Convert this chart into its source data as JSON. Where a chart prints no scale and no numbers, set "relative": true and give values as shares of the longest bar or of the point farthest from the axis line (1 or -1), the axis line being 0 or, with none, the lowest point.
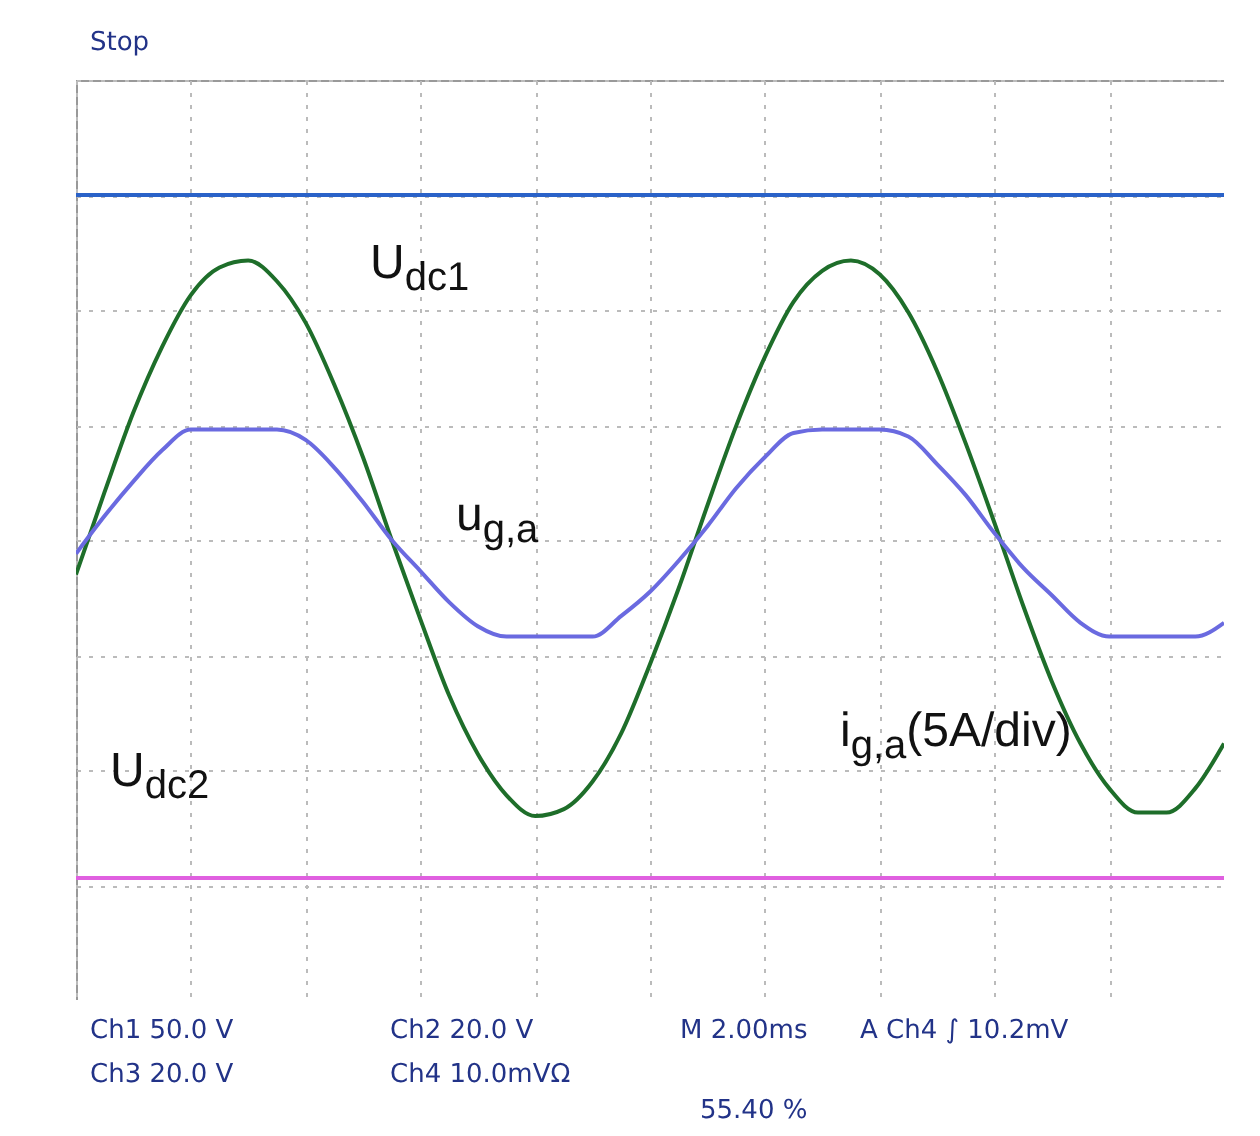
{
  "chart_data": {
    "type": "line",
    "relative": true,
    "grid": true,
    "categories": [
      null,
      null,
      null,
      null,
      null,
      null,
      null,
      null,
      null,
      null,
      null,
      null,
      null,
      null,
      null,
      null,
      null,
      null,
      null,
      null,
      null,
      null,
      null,
      null,
      null,
      null,
      null,
      null,
      null,
      null,
      null,
      null,
      null,
      null,
      null,
      null,
      null,
      null,
      null,
      null,
      null
    ],
    "series": [
      {
        "name": "U$_{dc1}$",
        "color": "#2a62c8",
        "values": [
          1,
          1,
          1,
          1,
          1,
          1,
          1,
          1,
          1,
          1,
          1,
          1,
          1,
          1,
          1,
          1,
          1,
          1,
          1,
          1,
          1,
          1,
          1,
          1,
          1,
          1,
          1,
          1,
          1,
          1,
          1,
          1,
          1,
          1,
          1,
          1,
          1,
          1,
          1,
          1,
          1
        ]
      },
      {
        "name": "i$_{g,a}$(5A/div)",
        "color": "#1e6e2a",
        "values": [
          -0.1,
          0.14,
          0.37,
          0.56,
          0.71,
          0.79,
          0.81,
          0.75,
          0.63,
          0.45,
          0.24,
          0.0,
          -0.23,
          -0.45,
          -0.62,
          -0.74,
          -0.8,
          -0.78,
          -0.7,
          -0.56,
          -0.36,
          -0.14,
          0.1,
          0.33,
          0.53,
          0.69,
          0.78,
          0.81,
          0.77,
          0.66,
          0.49,
          0.28,
          0.05,
          -0.19,
          -0.41,
          -0.59,
          -0.72,
          -0.79,
          -0.79,
          -0.72,
          -0.59
        ]
      },
      {
        "name": "u$_{g,a}$",
        "color": "#6a6ae0",
        "values": [
          -0.04,
          0.07,
          0.17,
          0.26,
          0.32,
          0.32,
          0.32,
          0.32,
          0.29,
          0.21,
          0.11,
          0.0,
          -0.09,
          -0.18,
          -0.25,
          -0.28,
          -0.28,
          -0.28,
          -0.28,
          -0.22,
          -0.15,
          -0.06,
          0.04,
          0.15,
          0.24,
          0.31,
          0.32,
          0.32,
          0.32,
          0.3,
          0.22,
          0.13,
          0.02,
          -0.08,
          -0.16,
          -0.24,
          -0.28,
          -0.28,
          -0.28,
          -0.28,
          -0.24
        ]
      },
      {
        "name": "U$_{dc2}$",
        "color": "#e060e0",
        "values": [
          -0.98,
          -0.98,
          -0.98,
          -0.98,
          -0.98,
          -0.98,
          -0.98,
          -0.98,
          -0.98,
          -0.98,
          -0.98,
          -0.98,
          -0.98,
          -0.98,
          -0.98,
          -0.98,
          -0.98,
          -0.98,
          -0.98,
          -0.98,
          -0.98,
          -0.98,
          -0.98,
          -0.98,
          -0.98,
          -0.98,
          -0.98,
          -0.98,
          -0.98,
          -0.98,
          -0.98,
          -0.98,
          -0.98,
          -0.98,
          -0.98,
          -0.98,
          -0.98,
          -0.98,
          -0.98,
          -0.98,
          -0.98
        ]
      }
    ],
    "annotations": [
      "Stop",
      "Ch1  50.0 V",
      "Ch2  20.0 V",
      "M 2.00ms",
      "A  Ch4 ∫ 10.2mV",
      "Ch3  20.0 V",
      "Ch4  10.0mVΩ",
      "55.40 %"
    ]
  }
}
